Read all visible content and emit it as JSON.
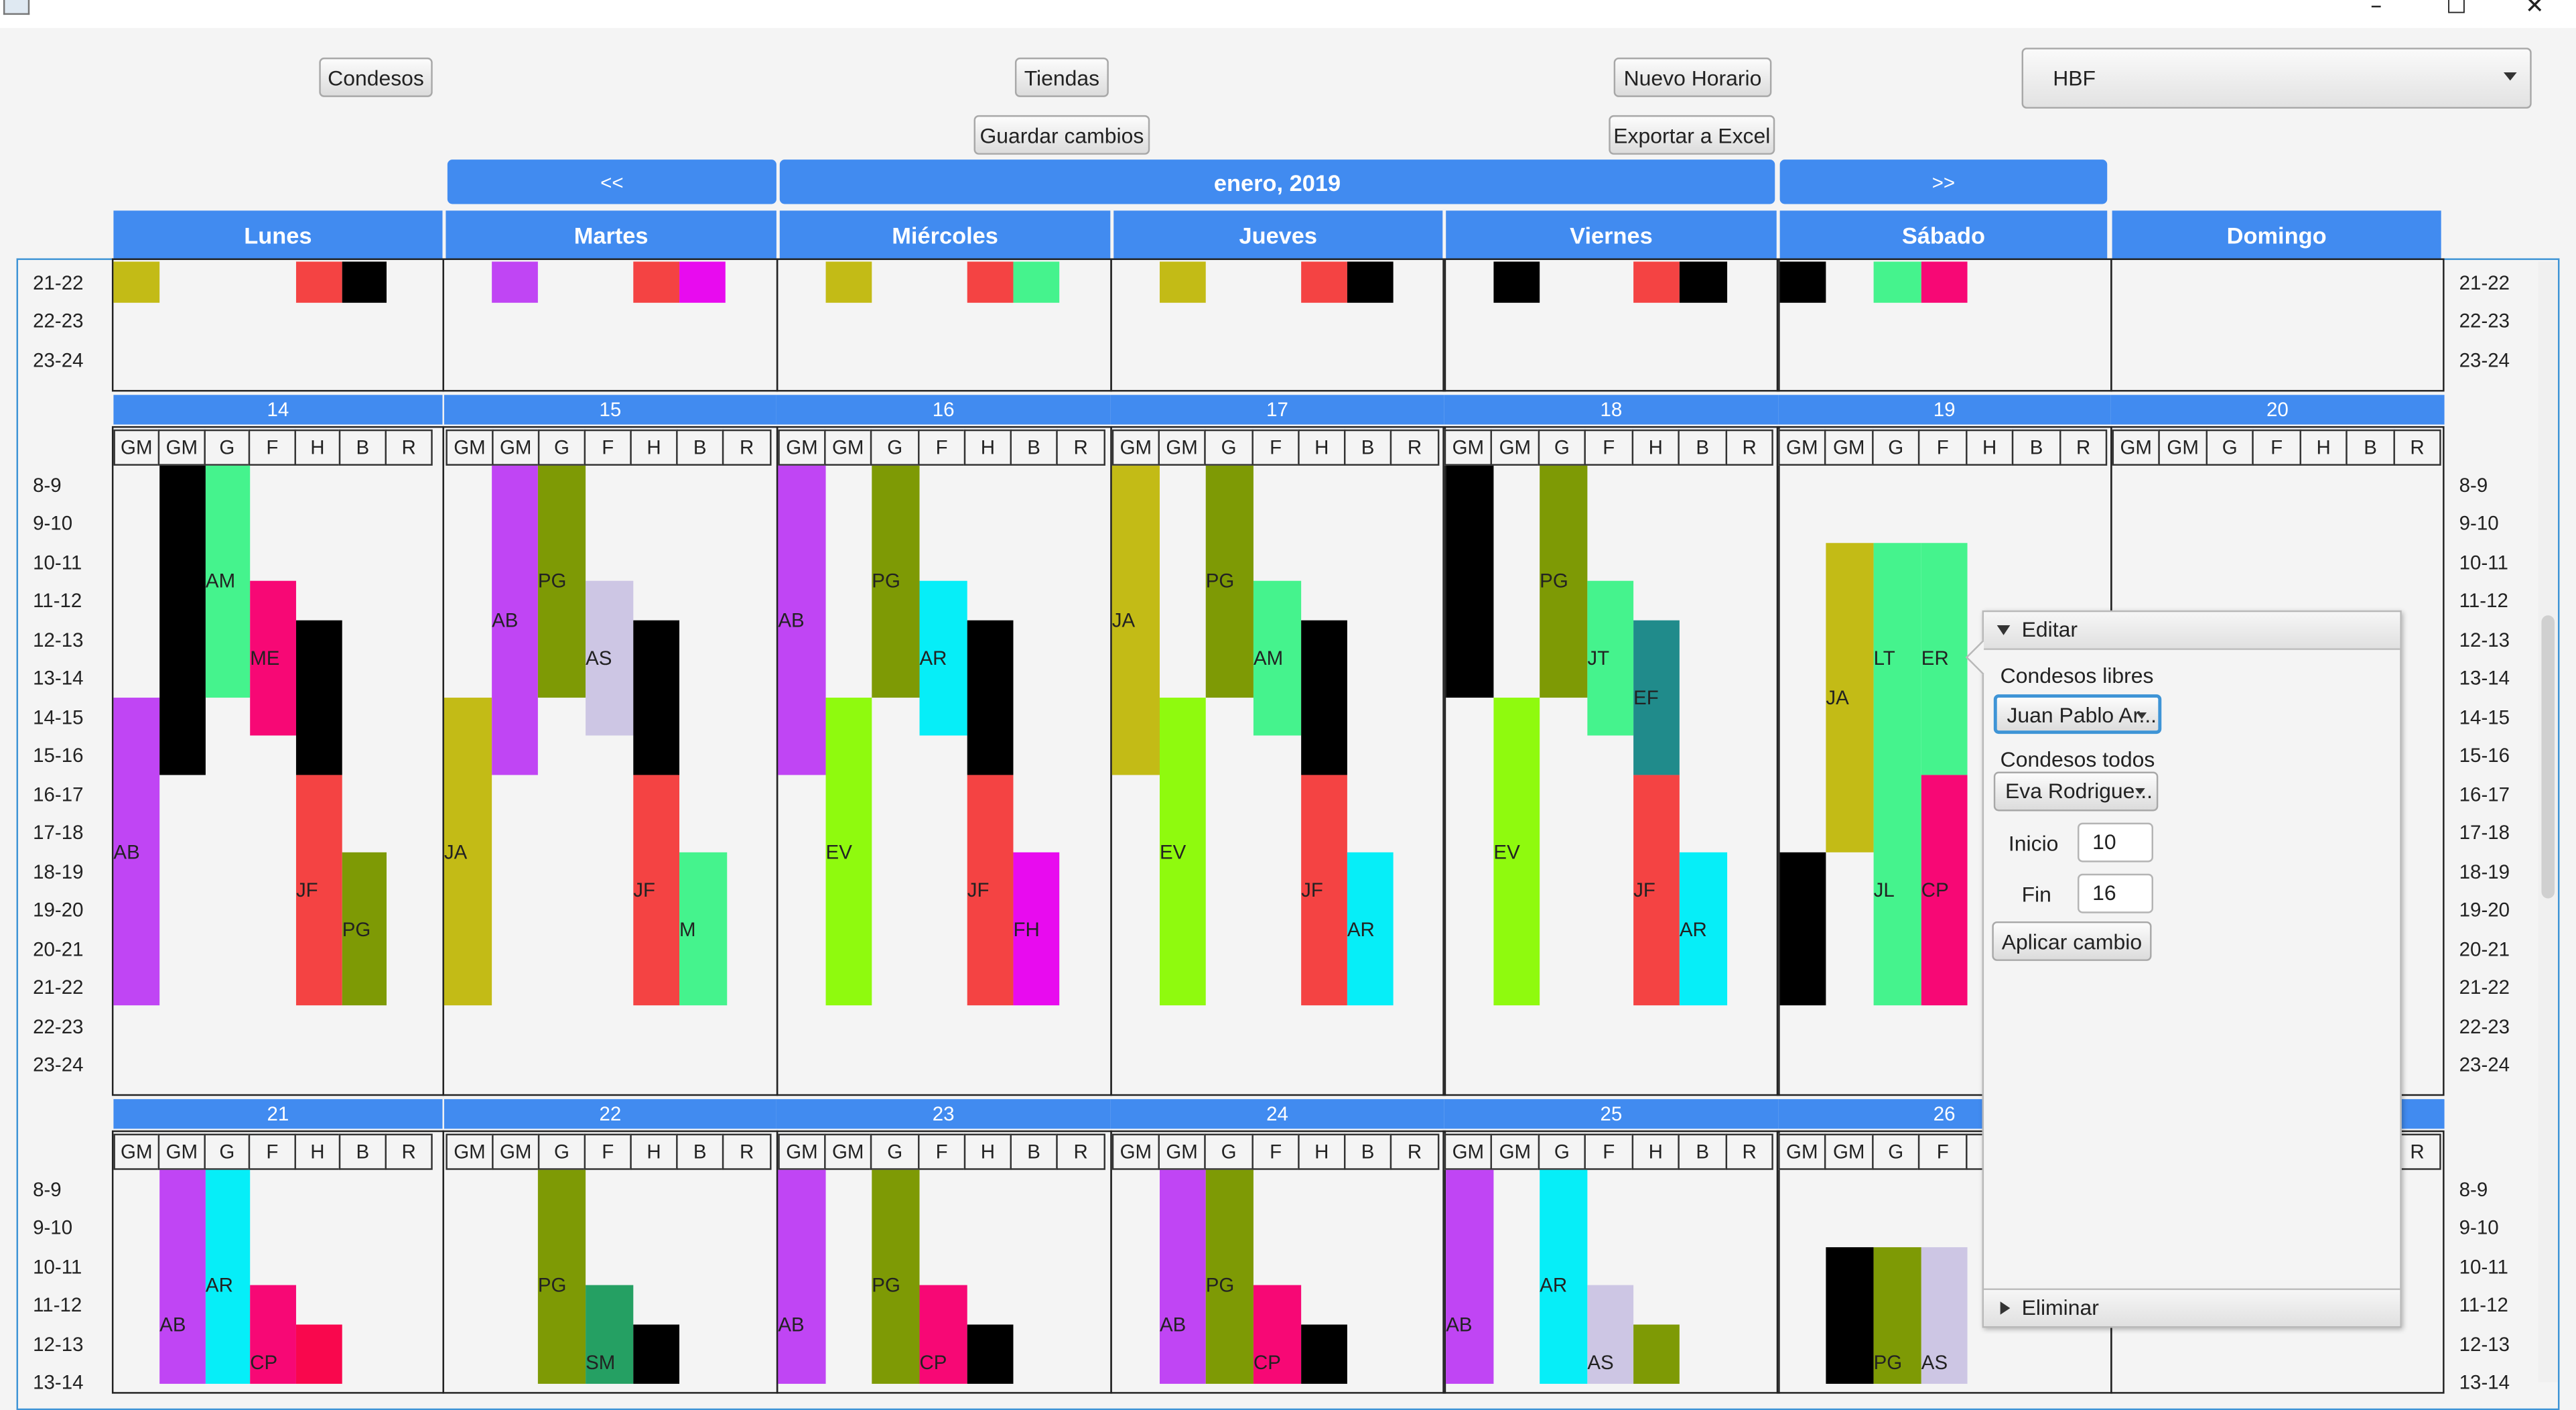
{
  "window": {
    "minimize": "–",
    "maximize": "☐",
    "close": "✕"
  },
  "toolbar": {
    "condesos": "Condesos",
    "tiendas": "Tiendas",
    "nuevo_horario": "Nuevo Horario",
    "guardar_cambios": "Guardar cambios",
    "exportar_excel": "Exportar a Excel",
    "store_selected": "HBF"
  },
  "nav": {
    "prev": "<<",
    "month": "enero, 2019",
    "next": ">>"
  },
  "days": [
    "Lunes",
    "Martes",
    "Miércoles",
    "Jueves",
    "Viernes",
    "Sábado",
    "Domingo"
  ],
  "columns": [
    "GM",
    "GM",
    "G",
    "F",
    "H",
    "B",
    "R"
  ],
  "hours_top": [
    "21-22",
    "22-23",
    "23-24"
  ],
  "hours": [
    "8-9",
    "9-10",
    "10-11",
    "11-12",
    "12-13",
    "13-14",
    "14-15",
    "15-16",
    "16-17",
    "17-18",
    "18-19",
    "19-20",
    "20-21",
    "21-22",
    "22-23",
    "23-24"
  ],
  "hours_bottom": [
    "8-9",
    "9-10",
    "10-11",
    "11-12",
    "12-13",
    "13-14"
  ],
  "week_mid": [
    "14",
    "15",
    "16",
    "17",
    "18",
    "19",
    "20"
  ],
  "week_bottom": [
    "21",
    "22",
    "23",
    "24",
    "25",
    "26"
  ],
  "colors": {
    "accent": "#418bf0",
    "olive": "#c3bb16",
    "red": "#f44343",
    "black": "#000000",
    "purple": "#c045f4",
    "magenta": "#e80bef",
    "mint": "#45f38d",
    "pink": "#f70875",
    "green": "#8ffa0e",
    "darkolive": "#7e9a05",
    "cyan": "#06eef8",
    "lavender": "#cdc6e4",
    "teal": "#208b8b",
    "seagreen": "#25a063",
    "hotred": "#f9074d"
  },
  "shift_labels": [
    "AM",
    "ME",
    "AB",
    "JF",
    "PG",
    "AB",
    "PG",
    "AS",
    "JA",
    "JF",
    "M",
    "AB",
    "PG",
    "AR",
    "EV",
    "JF",
    "FH",
    "JA",
    "PG",
    "AM",
    "EV",
    "JF",
    "AR",
    "PG",
    "JT",
    "EF",
    "EV",
    "JF",
    "AR",
    "JA",
    "LT",
    "ER",
    "JL",
    "CP",
    "AB",
    "AR",
    "CP",
    "PG",
    "SM",
    "AB",
    "PG",
    "CP",
    "AB",
    "PG",
    "CP",
    "AB",
    "AR",
    "AS",
    "PG",
    "AS"
  ],
  "editor": {
    "title": "Editar",
    "libres_label": "Condesos libres",
    "libres_value": "Juan Pablo Ar...",
    "todos_label": "Condesos todos",
    "todos_value": "Eva Rodrigue...",
    "inicio_label": "Inicio",
    "inicio_value": "10",
    "fin_label": "Fin",
    "fin_value": "16",
    "apply": "Aplicar cambio",
    "eliminar": "Eliminar"
  }
}
